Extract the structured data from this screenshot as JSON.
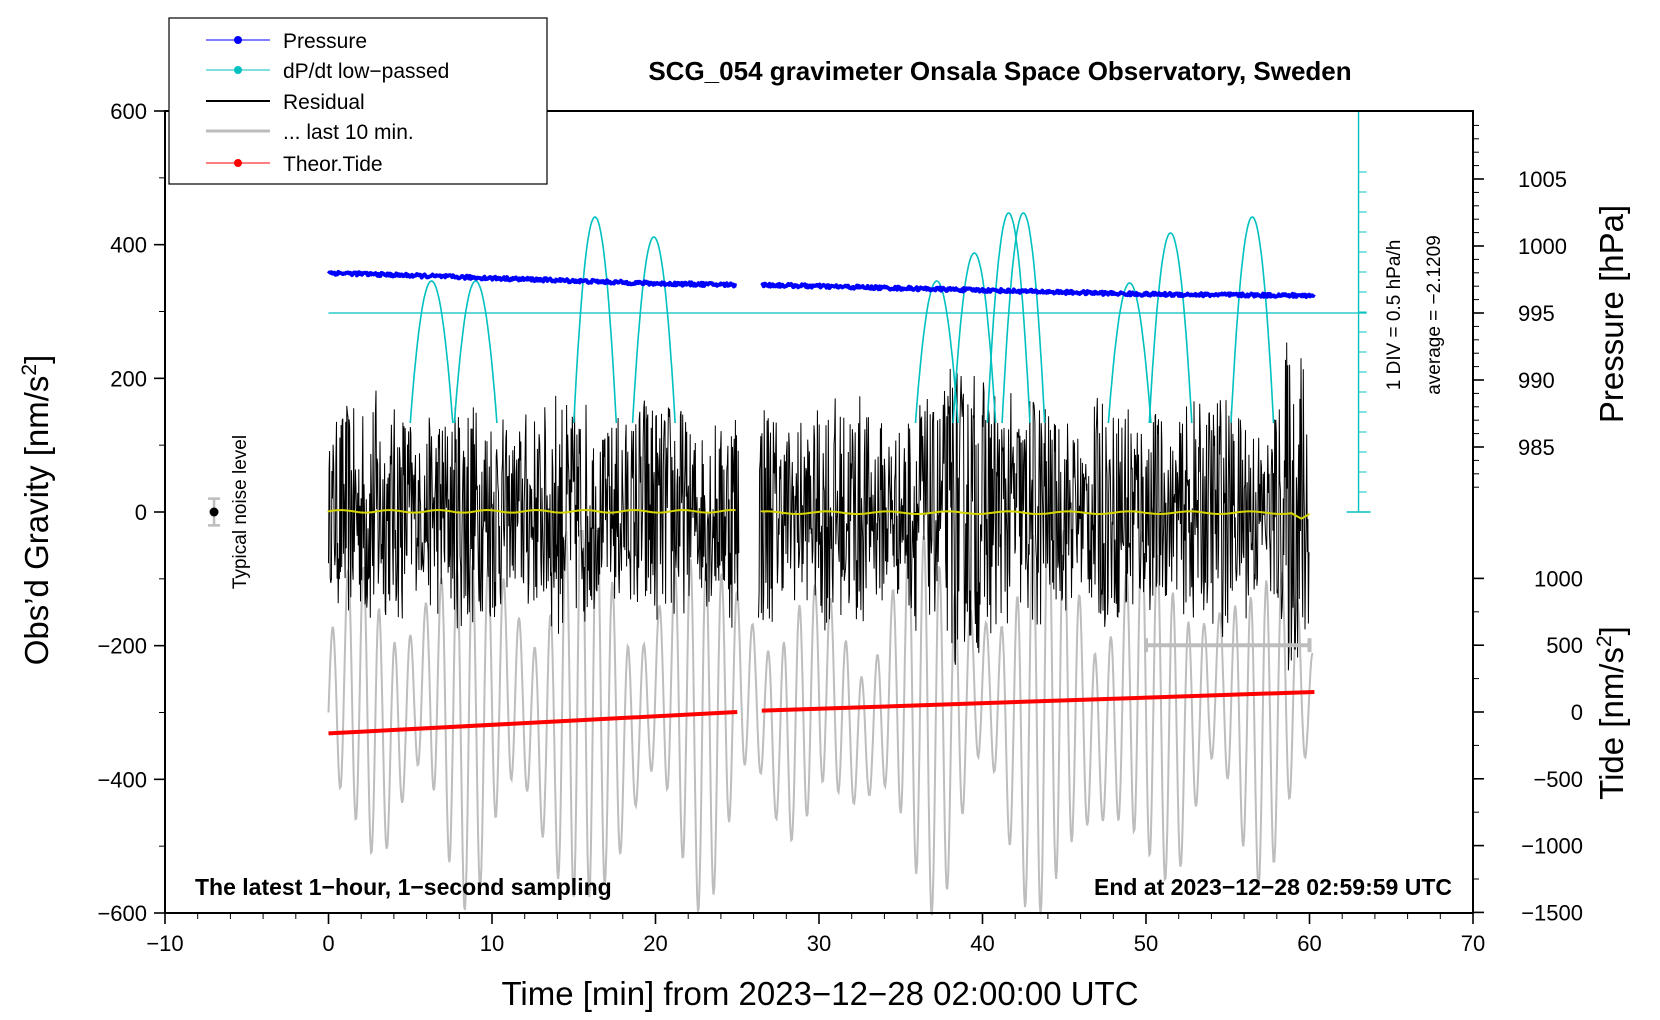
{
  "chart_data": {
    "type": "line",
    "title": "SCG_054 gravimeter Onsala Space Observatory, Sweden",
    "xlabel": "Time [min] from 2023−12−28 02:00:00 UTC",
    "ylabel": "Obs’d Gravity [nm/s",
    "ylabel_sup": "2",
    "ylabel_close": "]",
    "right_top_label": "Pressure [hPa]",
    "right_bottom_label": "Tide [nm/s",
    "right_bottom_sup": "2",
    "right_bottom_close": "]",
    "xlim": [
      -10,
      70
    ],
    "ylim": [
      -600,
      600
    ],
    "x_ticks": [
      "−10",
      "0",
      "10",
      "20",
      "30",
      "40",
      "50",
      "60",
      "70"
    ],
    "y_ticks": [
      "−600",
      "−400",
      "−200",
      "0",
      "200",
      "400",
      "600"
    ],
    "pressure_ticks": [
      "1005",
      "1000",
      "995",
      "990",
      "985"
    ],
    "tide_ticks": [
      "1000",
      "500",
      "0",
      "−500",
      "−1000",
      "−1500"
    ],
    "legend": [
      {
        "name": "Pressure",
        "color": "#0000ff",
        "marker": true
      },
      {
        "name": "dP/dt low−passed",
        "color": "#00c0c0",
        "marker": true
      },
      {
        "name": "Residual",
        "color": "#000000",
        "marker": false
      },
      {
        "name": "... last 10 min.",
        "color": "#bdbdbd",
        "marker": false
      },
      {
        "name": "Theor.Tide",
        "color": "#ff0000",
        "marker": true
      }
    ],
    "noise_label": "Typical noise level",
    "dpdt_scale_label": "1 DIV = 0.5 hPa/h",
    "dpdt_average_label": "average = −2.1209",
    "bottom_left_note": "The latest 1−hour, 1−second sampling",
    "bottom_right_note": "End at 2023−12−28 02:59:59 UTC",
    "series": [
      {
        "name": "Pressure",
        "axis": "pressure_hPa",
        "x": [
          0,
          10,
          20,
          25,
          26.5,
          40,
          50,
          60
        ],
        "values": [
          998.0,
          997.6,
          997.2,
          997.1,
          997.1,
          996.7,
          996.4,
          996.3
        ]
      },
      {
        "name": "dP/dt low-passed",
        "axis": "dpdt_hPa_per_h",
        "baseline_pressure": 995,
        "peak_x": [
          6.3,
          9.0,
          16.3,
          19.9,
          37.2,
          39.5,
          41.6,
          42.5,
          49.0,
          51.5,
          56.5
        ],
        "peak_div": [
          1.6,
          1.6,
          4.8,
          3.8,
          1.6,
          3.0,
          5.0,
          5.0,
          1.5,
          4.0,
          4.8
        ]
      },
      {
        "name": "Residual",
        "axis": "gravity_nm_s2",
        "x_range": [
          0,
          60
        ],
        "gap": [
          25.1,
          26.3
        ],
        "amplitude_range": [
          -255,
          270
        ]
      },
      {
        "name": "Residual low-passed (yellow)",
        "axis": "gravity_nm_s2",
        "x": [
          0,
          25,
          26.5,
          59,
          60
        ],
        "values": [
          2,
          0,
          0,
          0,
          -10
        ]
      },
      {
        "name": "Theor.Tide",
        "axis": "tide_nm_s2",
        "x": [
          0,
          25,
          26.5,
          60.3
        ],
        "values": [
          -160,
          0,
          10,
          150
        ]
      },
      {
        "name": "Last 10 min range",
        "axis": "tide_nm_s2",
        "x": [
          50,
          60
        ],
        "values": [
          500,
          500
        ]
      }
    ],
    "noise_marker": {
      "x": -7,
      "y": 0,
      "error": 20
    }
  },
  "colors": {
    "pressure": "#0000ff",
    "dpdt": "#00c0c0",
    "residual": "#000000",
    "gray": "#bdbdbd",
    "tide": "#ff0000",
    "yellow": "#d4d400"
  }
}
